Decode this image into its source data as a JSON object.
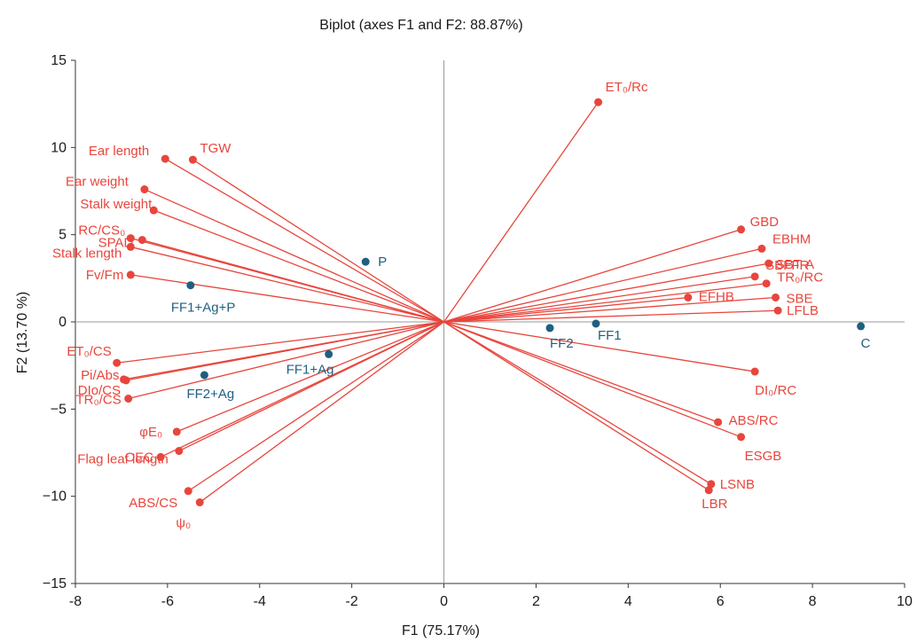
{
  "chart_data": {
    "type": "scatter",
    "title": "Biplot (axes F1 and F2: 88.87%)",
    "xlabel": "F1 (75.17%)",
    "ylabel": "F2 (13.70 %)",
    "xlim": [
      -8,
      10
    ],
    "ylim": [
      -15,
      15
    ],
    "xticks": [
      "-8",
      "-6",
      "-4",
      "-2",
      "0",
      "2",
      "4",
      "6",
      "8",
      "10"
    ],
    "yticks": [
      "15",
      "10",
      "5",
      "0",
      "−5",
      "−10",
      "−15"
    ],
    "colors": {
      "variables": "#e8453c",
      "observations": "#1f5f80",
      "axes": "#999999"
    },
    "variables": [
      {
        "name": "ET₀/Rc",
        "x": 3.35,
        "y": 12.6
      },
      {
        "name": "TGW",
        "x": -5.45,
        "y": 9.3
      },
      {
        "name": "Ear length",
        "x": -6.05,
        "y": 9.35
      },
      {
        "name": "Ear weight",
        "x": -6.5,
        "y": 7.6
      },
      {
        "name": "Stalk weight",
        "x": -6.3,
        "y": 6.4
      },
      {
        "name": "RC/CS₀",
        "x": -6.8,
        "y": 4.8
      },
      {
        "name": "SPAD",
        "x": -6.55,
        "y": 4.7
      },
      {
        "name": "Stalk length",
        "x": -6.8,
        "y": 4.3
      },
      {
        "name": "Fv/Fm",
        "x": -6.8,
        "y": 2.7
      },
      {
        "name": "GBD",
        "x": 6.45,
        "y": 5.3
      },
      {
        "name": "EBHM",
        "x": 6.9,
        "y": 4.2
      },
      {
        "name": "SBT-A",
        "x": 7.05,
        "y": 3.35
      },
      {
        "name": "SBFFR",
        "x": 6.75,
        "y": 2.6
      },
      {
        "name": "TR₀/RC",
        "x": 7.0,
        "y": 2.2
      },
      {
        "name": "SBE",
        "x": 7.2,
        "y": 1.4
      },
      {
        "name": "EFHB",
        "x": 5.3,
        "y": 1.4
      },
      {
        "name": "LFLB",
        "x": 7.25,
        "y": 0.65
      },
      {
        "name": "DI₀/RC",
        "x": 6.75,
        "y": -2.85
      },
      {
        "name": "ABS/RC",
        "x": 5.95,
        "y": -5.75
      },
      {
        "name": "ESGB",
        "x": 6.45,
        "y": -6.6
      },
      {
        "name": "LSNB",
        "x": 5.8,
        "y": -9.3
      },
      {
        "name": "LBR",
        "x": 5.75,
        "y": -9.65
      },
      {
        "name": "ET₀/CS",
        "x": -7.1,
        "y": -2.35
      },
      {
        "name": "Pi/Abs",
        "x": -6.95,
        "y": -3.3
      },
      {
        "name": "DIo/CS",
        "x": -6.9,
        "y": -3.35
      },
      {
        "name": "TR₀/CS",
        "x": -6.85,
        "y": -4.4
      },
      {
        "name": "φE₀",
        "x": -5.8,
        "y": -6.3
      },
      {
        "name": "OEC",
        "x": -6.15,
        "y": -7.75
      },
      {
        "name": "Flag leaf length",
        "x": -5.75,
        "y": -7.4
      },
      {
        "name": "ABS/CS",
        "x": -5.55,
        "y": -9.7
      },
      {
        "name": "ψ₀",
        "x": -5.3,
        "y": -10.35
      }
    ],
    "observations": [
      {
        "name": "P",
        "x": -1.7,
        "y": 3.45
      },
      {
        "name": "FF1+Ag+P",
        "x": -5.5,
        "y": 2.1
      },
      {
        "name": "FF1+Ag",
        "x": -2.5,
        "y": -1.85
      },
      {
        "name": "FF2+Ag",
        "x": -5.2,
        "y": -3.05
      },
      {
        "name": "FF2",
        "x": 2.3,
        "y": -0.35
      },
      {
        "name": "FF1",
        "x": 3.3,
        "y": -0.1
      },
      {
        "name": "C",
        "x": 9.05,
        "y": -0.25
      }
    ]
  }
}
